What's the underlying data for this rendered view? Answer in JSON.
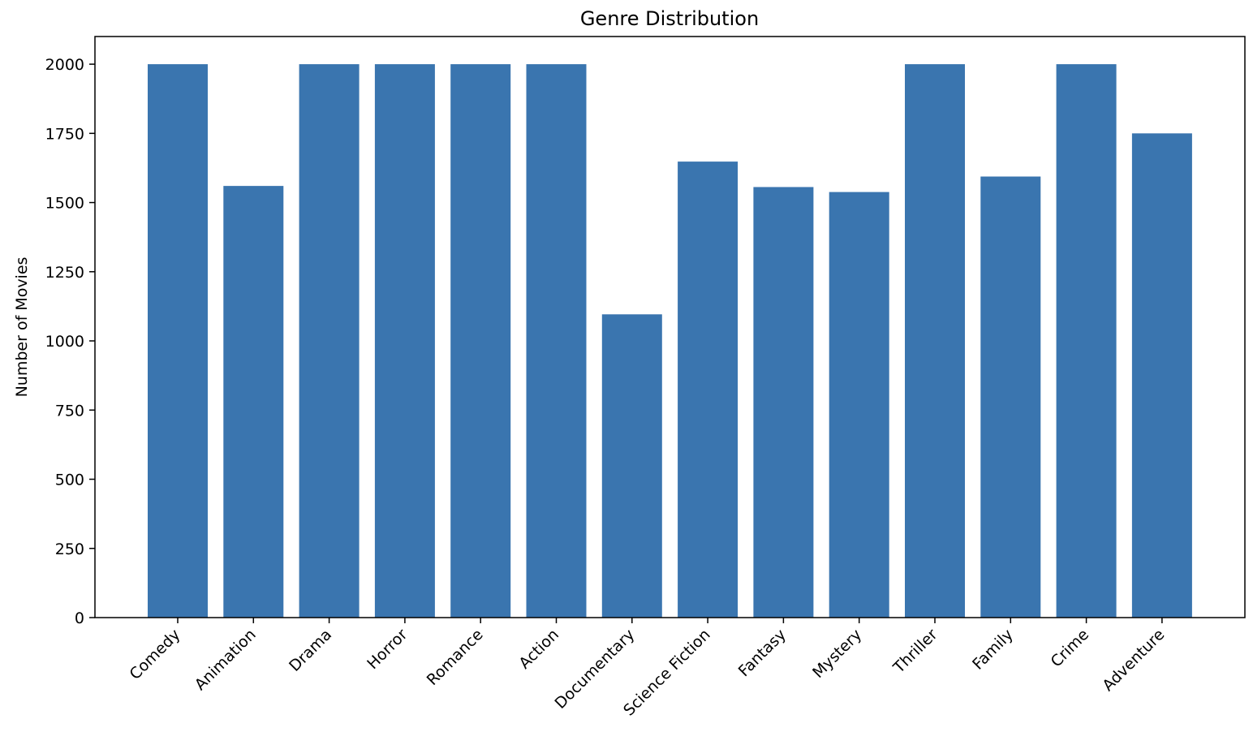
{
  "chart_data": {
    "type": "bar",
    "title": "Genre Distribution",
    "xlabel": "",
    "ylabel": "Number of Movies",
    "categories": [
      "Comedy",
      "Animation",
      "Drama",
      "Horror",
      "Romance",
      "Action",
      "Documentary",
      "Science Fiction",
      "Fantasy",
      "Mystery",
      "Thriller",
      "Family",
      "Crime",
      "Adventure"
    ],
    "values": [
      2000,
      1560,
      2000,
      2000,
      2000,
      2000,
      1096,
      1648,
      1556,
      1538,
      2000,
      1594,
      2000,
      1750
    ],
    "ylim": [
      0,
      2100
    ],
    "yticks": [
      0,
      250,
      500,
      750,
      1000,
      1250,
      1500,
      1750,
      2000
    ],
    "grid": false,
    "bar_color": "#3a75af",
    "legend": "none"
  }
}
